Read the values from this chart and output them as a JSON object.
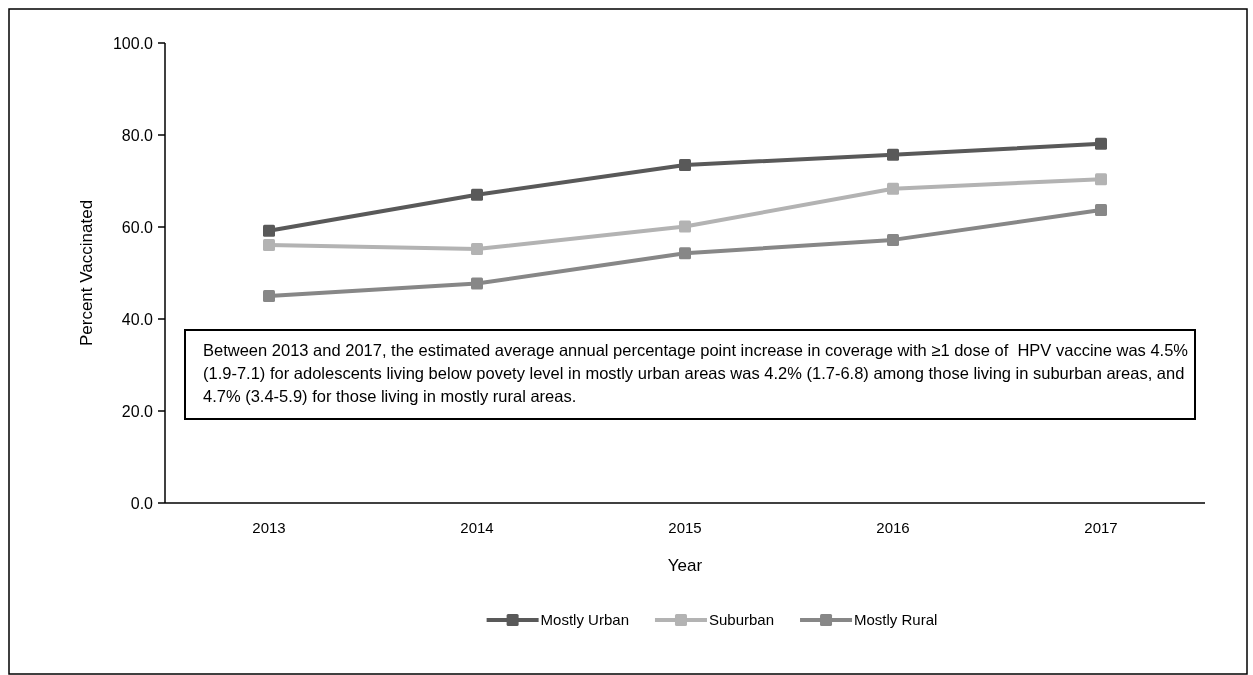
{
  "chart_data": {
    "type": "line",
    "xlabel": "Year",
    "ylabel": "Percent Vaccinated",
    "categories": [
      "2013",
      "2014",
      "2015",
      "2016",
      "2017"
    ],
    "series": [
      {
        "name": "Mostly Urban",
        "color": "#595959",
        "values": [
          59.2,
          67.0,
          73.5,
          75.7,
          78.1
        ]
      },
      {
        "name": "Suburban",
        "color": "#b3b3b3",
        "values": [
          56.1,
          55.2,
          60.1,
          68.3,
          70.4
        ]
      },
      {
        "name": "Mostly Rural",
        "color": "#878787",
        "values": [
          45.0,
          47.7,
          54.3,
          57.2,
          63.7
        ]
      }
    ],
    "ylim": [
      0,
      100
    ],
    "yticks": [
      {
        "value": 0,
        "label": "0.0"
      },
      {
        "value": 20,
        "label": "20.0"
      },
      {
        "value": 40,
        "label": "40.0"
      },
      {
        "value": 60,
        "label": "60.0"
      },
      {
        "value": 80,
        "label": "80.0"
      },
      {
        "value": 100,
        "label": "100.0"
      }
    ],
    "annotations": [
      "Between 2013 and 2017, the estimated average annual percentage point increase in coverage with ≥1 dose of  HPV vaccine was 4.5% (1.9-7.1) for adolescents living below povety level in mostly urban areas was 4.2% (1.7-6.8) among those living in suburban areas, and 4.7% (3.4-5.9) for those living in mostly rural areas."
    ],
    "marker": "square",
    "line_style": "solid",
    "legend": "bottom",
    "grid": false
  }
}
